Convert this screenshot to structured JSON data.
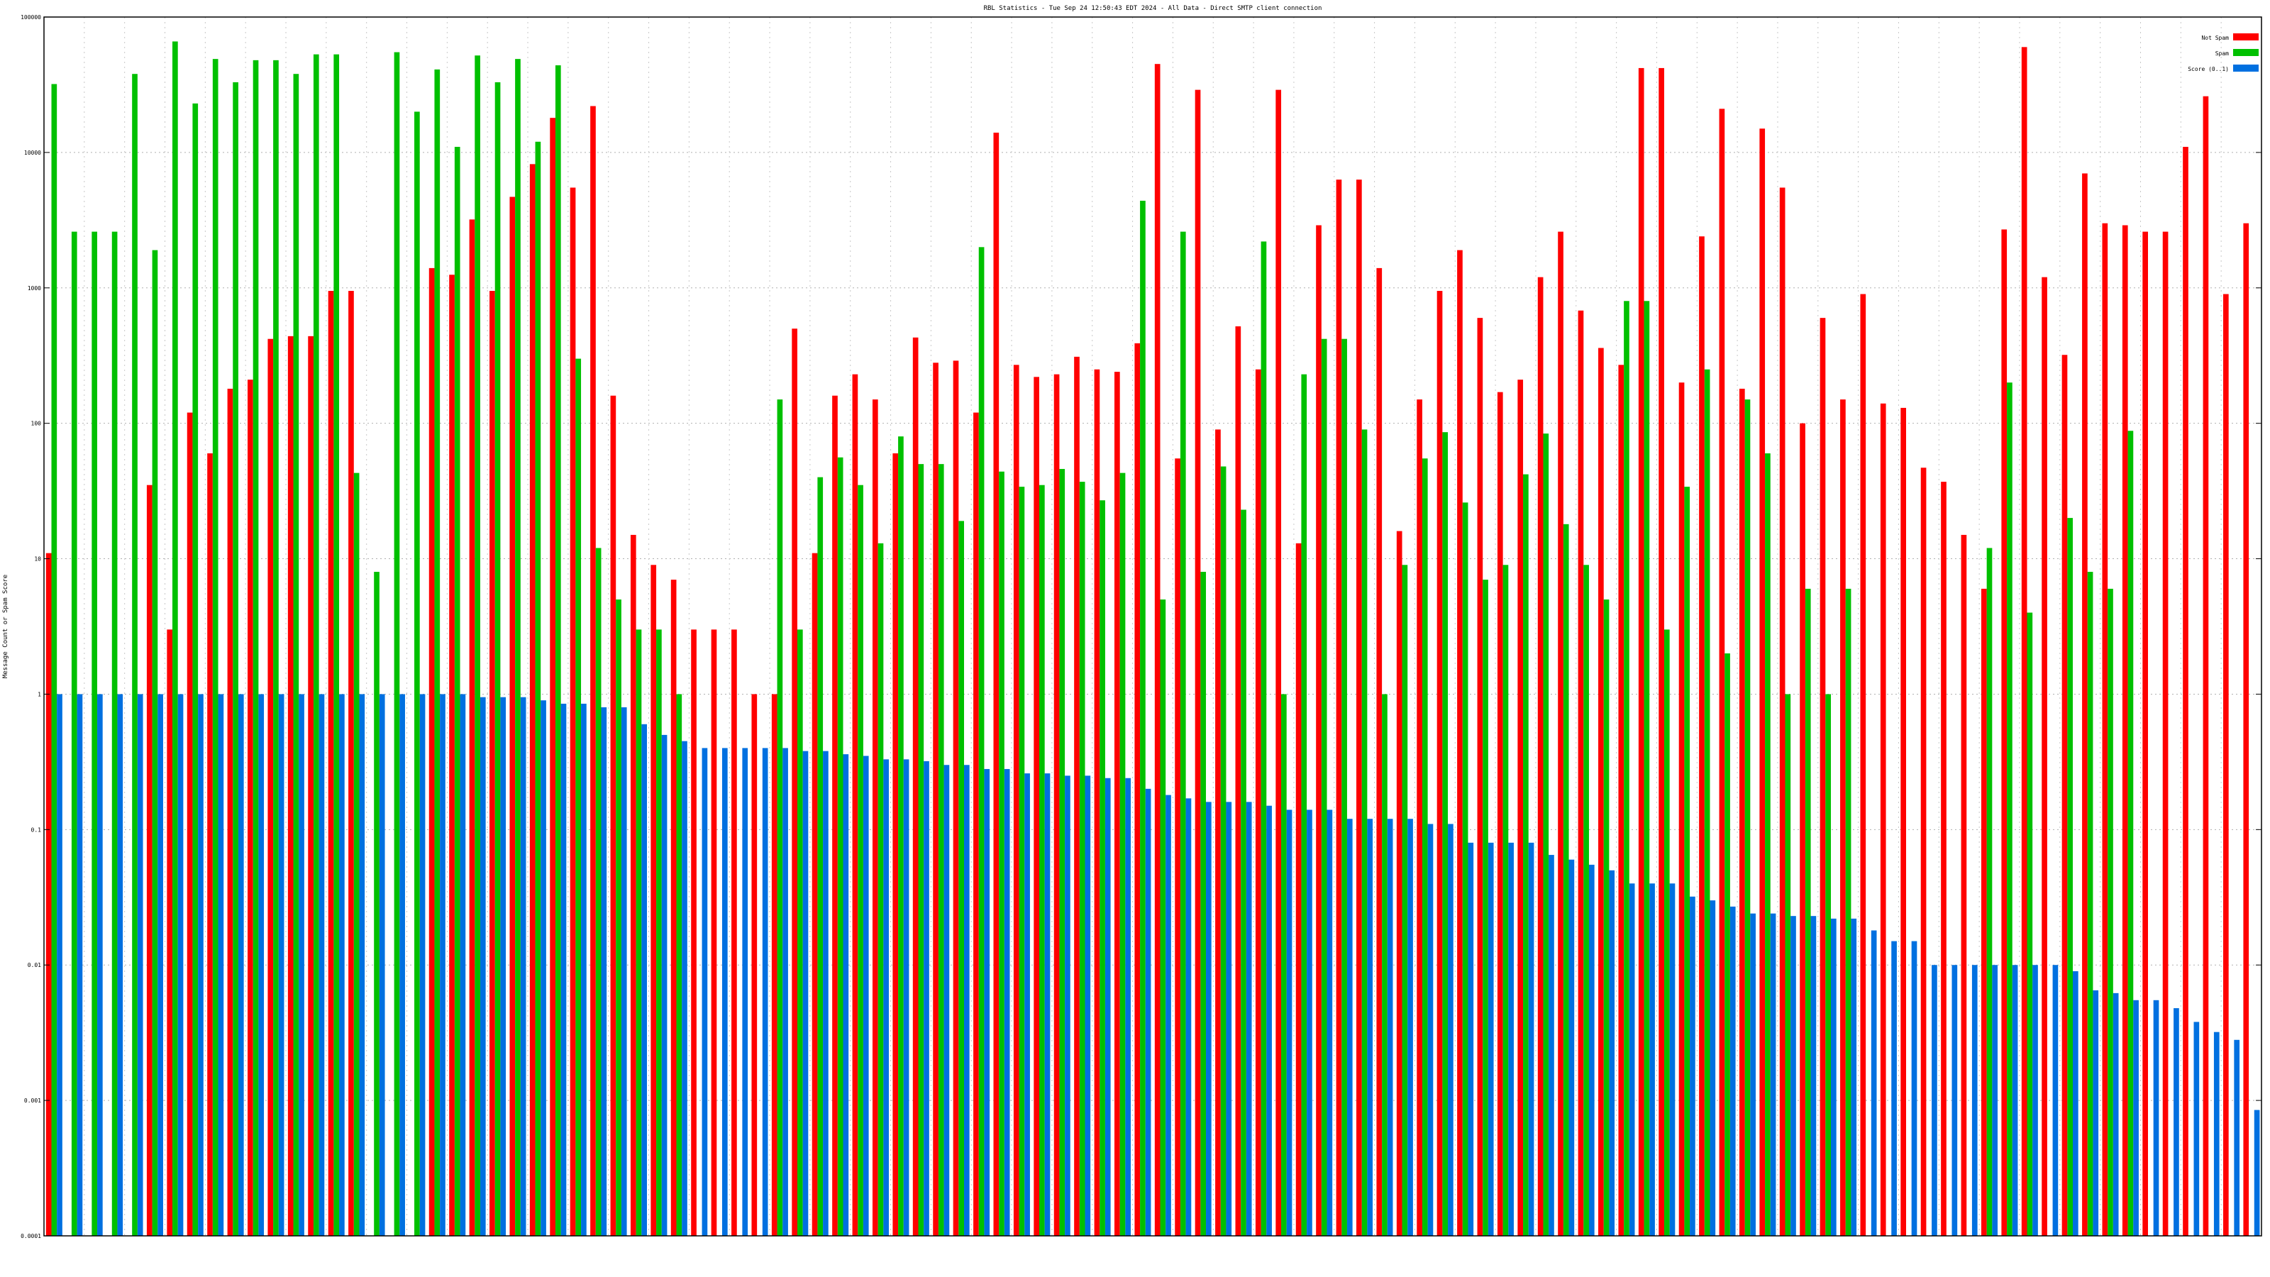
{
  "chart_data": {
    "type": "bar",
    "title": "RBL Statistics - Tue Sep 24 12:50:43 EDT 2024 - All Data - Direct SMTP client connection",
    "ylabel": "Message Count or Spam Score",
    "xlabel": "",
    "yscale": "log",
    "ylim": [
      0.0001,
      100000
    ],
    "y_ticks": [
      "100000",
      "10000",
      "1000",
      "100",
      "10",
      "1",
      "0.1",
      "0.01",
      "0.001",
      "0.0001"
    ],
    "grid": true,
    "legend_position": "top-right",
    "series": [
      {
        "name": "Not Spam",
        "color": "#ff0000",
        "values": [
          11,
          0,
          0,
          0,
          0,
          35,
          3,
          120,
          60,
          180,
          210,
          420,
          440,
          440,
          950,
          950,
          0,
          0,
          0,
          1400,
          1250,
          3200,
          950,
          4700,
          8200,
          18000,
          5500,
          22000,
          160,
          15,
          9,
          7,
          3,
          3,
          3,
          1,
          1,
          500,
          11,
          160,
          230,
          150,
          60,
          430,
          280,
          290,
          120,
          14000,
          270,
          220,
          230,
          310,
          250,
          240,
          390,
          45000,
          55,
          29000,
          90,
          520,
          250,
          29000,
          13,
          2900,
          6300,
          6300,
          1400,
          16,
          150,
          950,
          1900,
          600,
          170,
          210,
          1200,
          2600,
          680,
          360,
          270,
          42000,
          42000,
          200,
          2400,
          21000,
          180,
          15000,
          5500,
          100,
          600,
          150,
          900,
          140,
          130,
          47,
          37,
          15,
          6,
          2700,
          60000,
          1200,
          320,
          7000,
          3000,
          2900,
          2600,
          2600,
          11000,
          26000,
          900,
          3000
        ]
      },
      {
        "name": "Spam",
        "color": "#00c000",
        "values": [
          32000,
          2600,
          2600,
          2600,
          38000,
          1900,
          66000,
          23000,
          49000,
          33000,
          48000,
          48000,
          38000,
          53000,
          53000,
          43,
          8,
          55000,
          20000,
          41000,
          11000,
          52000,
          33000,
          49000,
          12000,
          44000,
          300,
          12,
          5,
          3,
          3,
          1,
          0,
          0,
          0,
          0,
          150,
          3,
          40,
          56,
          35,
          13,
          80,
          50,
          50,
          19,
          2000,
          44,
          34,
          35,
          46,
          37,
          27,
          43,
          4400,
          5,
          2600,
          8,
          48,
          23,
          2200,
          1,
          230,
          420,
          420,
          90,
          1,
          9,
          55,
          86,
          26,
          7,
          9,
          42,
          84,
          18,
          9,
          5,
          800,
          800,
          3,
          34,
          250,
          2,
          150,
          60,
          1,
          6,
          1,
          6,
          0,
          0,
          0,
          0,
          0,
          0,
          12,
          200,
          4,
          0,
          20,
          8,
          6,
          88,
          0,
          0,
          0,
          0,
          0,
          0,
          0
        ]
      },
      {
        "name": "Score (0..1)",
        "color": "#0070e0",
        "values": [
          1,
          1,
          1,
          1,
          1,
          1,
          1,
          1,
          1,
          1,
          1,
          1,
          1,
          1,
          1,
          1,
          1,
          1,
          1,
          1,
          1,
          0.95,
          0.95,
          0.95,
          0.9,
          0.85,
          0.85,
          0.8,
          0.8,
          0.6,
          0.5,
          0.45,
          0.4,
          0.4,
          0.4,
          0.4,
          0.4,
          0.38,
          0.38,
          0.36,
          0.35,
          0.33,
          0.33,
          0.32,
          0.3,
          0.3,
          0.28,
          0.28,
          0.26,
          0.26,
          0.25,
          0.25,
          0.24,
          0.24,
          0.2,
          0.18,
          0.17,
          0.16,
          0.16,
          0.16,
          0.15,
          0.14,
          0.14,
          0.14,
          0.12,
          0.12,
          0.12,
          0.12,
          0.11,
          0.11,
          0.08,
          0.08,
          0.08,
          0.08,
          0.065,
          0.06,
          0.055,
          0.05,
          0.04,
          0.04,
          0.04,
          0.032,
          0.03,
          0.027,
          0.024,
          0.024,
          0.023,
          0.023,
          0.022,
          0.022,
          0.018,
          0.015,
          0.015,
          0.01,
          0.01,
          0.01,
          0.01,
          0.01,
          0.01,
          0.01,
          0.009,
          0.0065,
          0.0062,
          0.0055,
          0.0055,
          0.0048,
          0.0038,
          0.0032,
          0.0028,
          0.00085
        ]
      }
    ]
  }
}
